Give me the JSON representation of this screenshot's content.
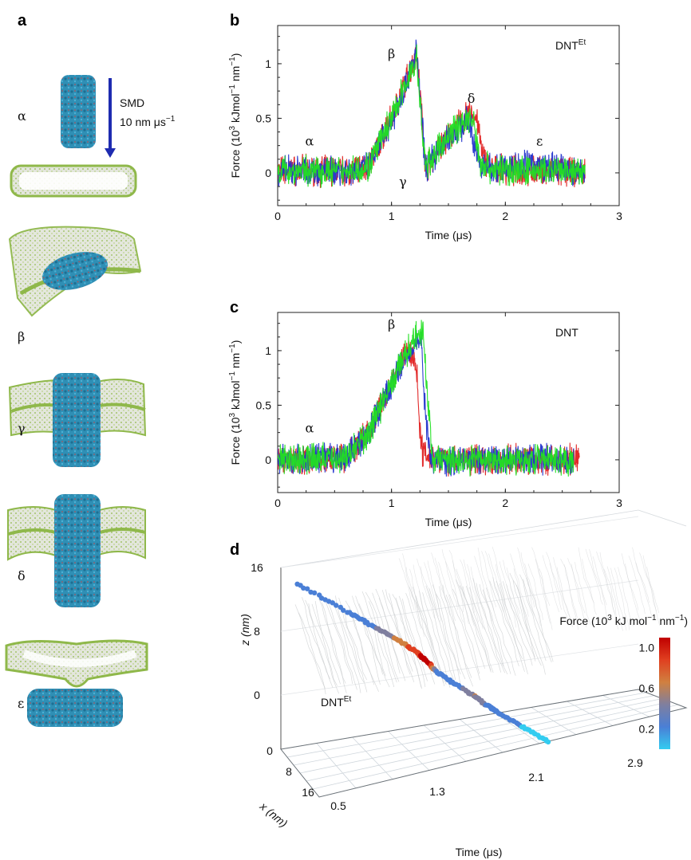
{
  "panel_labels": {
    "a": "a",
    "b": "b",
    "c": "c",
    "d": "d"
  },
  "panel_a": {
    "smd_label": "SMD",
    "smd_rate": "10 nm μs",
    "smd_rate_exp": "−1",
    "states": [
      "α",
      "β",
      "γ",
      "δ",
      "ε"
    ],
    "colors": {
      "membrane": "#9dc25a",
      "membrane_fill": "#d9d9d9",
      "protein": "#2f8fb5",
      "protein_accent": "#d04040",
      "arrow": "#1e2bb0"
    }
  },
  "colors": {
    "red": "#e02020",
    "blue": "#2233cc",
    "green": "#22e022"
  },
  "chart_data": [
    {
      "id": "b",
      "type": "line",
      "title": "",
      "annotation": "DNT",
      "annotation_sup": "Et",
      "xlabel": "Time (μs)",
      "ylabel_parts": [
        "Force (10",
        "3",
        " kJmol",
        "−1",
        " nm",
        "−1",
        ")"
      ],
      "xlim": [
        0,
        3
      ],
      "ylim": [
        -0.3,
        1.35
      ],
      "xticks": [
        0,
        1,
        2,
        3
      ],
      "yticks": [
        0,
        0.5,
        1
      ],
      "ytick_labels": [
        "0",
        "0.5",
        "1"
      ],
      "series": [
        {
          "color": "#e02020",
          "x": [
            0,
            0.6,
            0.8,
            1.0,
            1.18,
            1.22,
            1.26,
            1.3,
            1.4,
            1.55,
            1.7,
            1.75,
            1.8,
            1.9,
            2.2,
            2.7
          ],
          "y": [
            0.02,
            0.02,
            0.06,
            0.5,
            0.98,
            1.12,
            0.6,
            0.05,
            0.2,
            0.4,
            0.55,
            0.5,
            0.15,
            0.02,
            0.02,
            0.0
          ]
        },
        {
          "color": "#2233cc",
          "x": [
            0,
            0.6,
            0.8,
            1.0,
            1.18,
            1.22,
            1.26,
            1.3,
            1.4,
            1.55,
            1.68,
            1.72,
            1.78,
            1.9,
            2.2,
            2.7
          ],
          "y": [
            0.02,
            0.02,
            0.05,
            0.48,
            0.97,
            1.1,
            0.55,
            0.05,
            0.18,
            0.38,
            0.48,
            0.3,
            0.05,
            0.05,
            0.08,
            0.0
          ]
        },
        {
          "color": "#22e022",
          "x": [
            0,
            0.6,
            0.8,
            1.0,
            1.18,
            1.22,
            1.26,
            1.3,
            1.4,
            1.55,
            1.68,
            1.72,
            1.78,
            1.9,
            2.2,
            2.7
          ],
          "y": [
            0.02,
            0.02,
            0.06,
            0.5,
            0.95,
            1.05,
            0.5,
            0.05,
            0.2,
            0.4,
            0.5,
            0.45,
            0.1,
            0.03,
            0.02,
            0.0
          ]
        }
      ],
      "labels": [
        {
          "text": "α",
          "x": 0.28,
          "y": 0.25
        },
        {
          "text": "β",
          "x": 1.0,
          "y": 1.05
        },
        {
          "text": "γ",
          "x": 1.1,
          "y": -0.12
        },
        {
          "text": "δ",
          "x": 1.7,
          "y": 0.64
        },
        {
          "text": "ε",
          "x": 2.3,
          "y": 0.25
        }
      ]
    },
    {
      "id": "c",
      "type": "line",
      "title": "",
      "annotation": "DNT",
      "annotation_sup": "",
      "xlabel": "Time (μs)",
      "ylabel_parts": [
        "Force (10",
        "3",
        " kJmol",
        "−1",
        " nm",
        "−1",
        ")"
      ],
      "xlim": [
        0,
        3
      ],
      "ylim": [
        -0.3,
        1.35
      ],
      "xticks": [
        0,
        1,
        2,
        3
      ],
      "yticks": [
        0,
        0.5,
        1
      ],
      "ytick_labels": [
        "0",
        "0.5",
        "1"
      ],
      "series": [
        {
          "color": "#e02020",
          "x": [
            0,
            0.6,
            0.8,
            1.0,
            1.15,
            1.22,
            1.26,
            1.32,
            1.5,
            2.0,
            2.6,
            2.65
          ],
          "y": [
            0.0,
            0.02,
            0.25,
            0.72,
            1.02,
            0.85,
            0.1,
            0.05,
            0.0,
            0.0,
            0.0,
            0.05
          ]
        },
        {
          "color": "#2233cc",
          "x": [
            0,
            0.6,
            0.8,
            1.0,
            1.18,
            1.26,
            1.3,
            1.34,
            1.5,
            2.0,
            2.6
          ],
          "y": [
            0.0,
            0.02,
            0.25,
            0.7,
            1.05,
            1.1,
            0.4,
            0.02,
            0.0,
            0.0,
            0.0
          ]
        },
        {
          "color": "#22e022",
          "x": [
            0,
            0.6,
            0.8,
            1.0,
            1.18,
            1.28,
            1.32,
            1.36,
            1.5,
            2.0,
            2.6
          ],
          "y": [
            0.0,
            0.02,
            0.25,
            0.7,
            1.08,
            1.18,
            0.5,
            0.02,
            0.0,
            0.0,
            0.0
          ]
        }
      ],
      "labels": [
        {
          "text": "α",
          "x": 0.28,
          "y": 0.25
        },
        {
          "text": "β",
          "x": 1.0,
          "y": 1.2
        }
      ]
    },
    {
      "id": "d",
      "type": "scatter",
      "title": "",
      "annotation": "DNT",
      "annotation_sup": "Et",
      "xlabel": "Time (μs)",
      "ylabel_depth": "x (nm)",
      "zlabel": "z (nm)",
      "time_ticks": [
        "0.5",
        "1.3",
        "2.1",
        "2.9"
      ],
      "depth_ticks": [
        "0",
        "8",
        "16"
      ],
      "z_ticks": [
        "0",
        "8",
        "16"
      ],
      "colorbar": {
        "label_parts": [
          "Force (10",
          "3",
          " kJ mol",
          "−1",
          " nm",
          "−1",
          ")"
        ],
        "ticks": [
          "1.0",
          "0.6",
          "0.2"
        ],
        "tick_values": [
          1.0,
          0.6,
          0.2
        ],
        "range": [
          0.0,
          1.1
        ],
        "stops": [
          "#33ccf0",
          "#4a7fd6",
          "#7f7f9f",
          "#d08040",
          "#e04020",
          "#c00000"
        ]
      },
      "trajectory": {
        "time": [
          0.5,
          0.9,
          1.1,
          1.3,
          1.45,
          1.55,
          1.6,
          1.75,
          1.9,
          2.0,
          2.1,
          2.3,
          2.5
        ],
        "z": [
          14.0,
          11.5,
          10.2,
          9.0,
          7.8,
          6.6,
          5.8,
          4.6,
          3.5,
          2.6,
          1.8,
          0.5,
          -0.8
        ],
        "force": [
          0.15,
          0.25,
          0.3,
          0.6,
          0.95,
          1.1,
          0.3,
          0.2,
          0.55,
          0.3,
          0.15,
          0.1,
          0.05
        ]
      }
    }
  ]
}
